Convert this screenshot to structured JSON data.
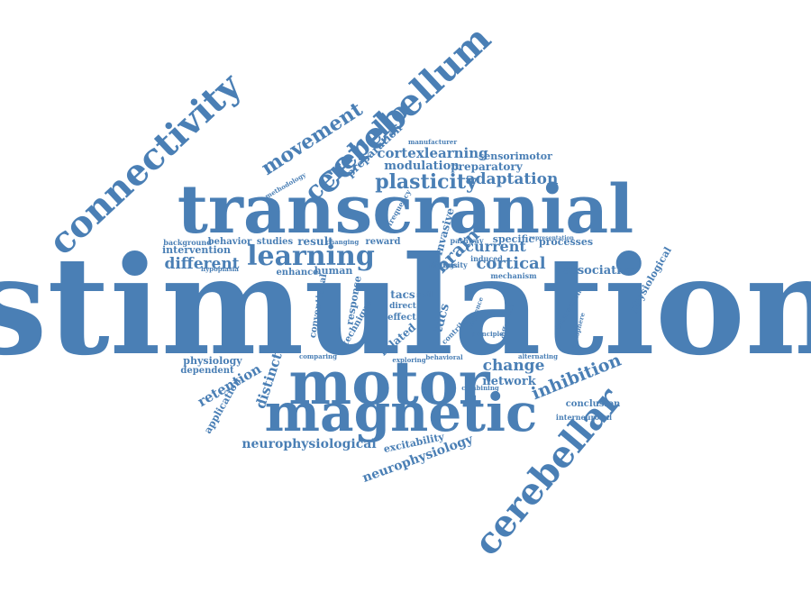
{
  "color": "#4a7fb5",
  "words": [
    "stimulation",
    "transcranial",
    "motor",
    "magnetic",
    "connectivity",
    "cerebellum",
    "cerebellar",
    "learning",
    "cerebello",
    "movement",
    "plasticity",
    "adaptation",
    "different",
    "cortical",
    "brain",
    "current",
    "inhibition",
    "change",
    "neurophysiological",
    "neurophysiology",
    "retention",
    "distinct",
    "application",
    "physiology",
    "dependent",
    "network",
    "conclusion",
    "interneuronal",
    "associative",
    "physiological",
    "processes",
    "specific",
    "cortexlearning",
    "modulation",
    "preparatory",
    "preparation",
    "sensorimotor",
    "manufacturer",
    "methodology",
    "background",
    "intervention",
    "behavior",
    "hypoplasia",
    "enhance",
    "human",
    "studies",
    "result",
    "reward",
    "invasive",
    "tdcs",
    "tacs",
    "pathway",
    "intensity",
    "mechanism",
    "representation",
    "excitability",
    "alternating",
    "hemisphere",
    "contribute",
    "principle",
    "comparing",
    "behavioral",
    "exploring",
    "combining",
    "conventional",
    "response",
    "technique",
    "related",
    "effect",
    "direct",
    "skill",
    "frequency",
    "interaction",
    "sequence",
    "findings",
    "difference",
    "changing",
    "induced"
  ]
}
